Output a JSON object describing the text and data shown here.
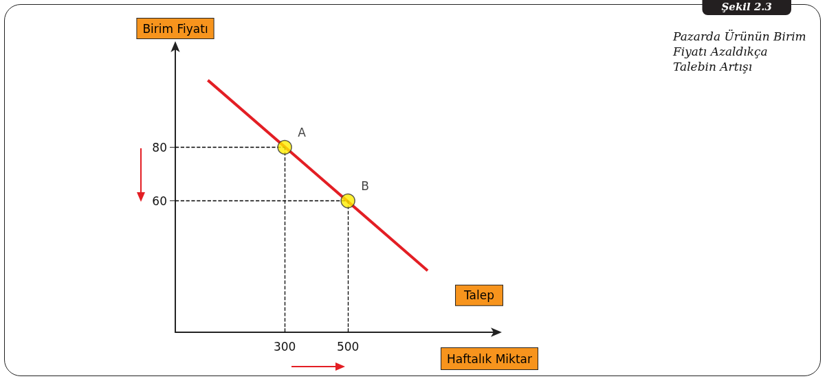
{
  "chart_data": {
    "type": "line",
    "title": "Şekil 2.3",
    "subtitle": "Pazarda Ürünün Birim Fiyatı Azaldıkça Talebin Artışı",
    "xlabel": "Haftalık Miktar",
    "ylabel": "Birim Fiyatı",
    "xlim": [
      -46,
      965
    ],
    "ylim": [
      11,
      117
    ],
    "xticks": [
      300,
      500
    ],
    "yticks": [
      80,
      60
    ],
    "series": [
      {
        "name": "Talep",
        "color": "#e31e24",
        "x": [
          57,
          752
        ],
        "values": [
          105,
          34
        ],
        "marker": "none"
      },
      {
        "type": "scatter",
        "color": "#ffee00",
        "x": [
          300,
          500
        ],
        "values": [
          80,
          60
        ],
        "marker": "circle"
      }
    ],
    "ref_lines": [
      {
        "axis": "x",
        "value": 300,
        "color": "#000000",
        "line_style": "dashed"
      },
      {
        "axis": "x",
        "value": 500,
        "color": "#000000",
        "line_style": "dashed"
      },
      {
        "axis": "y",
        "value": 80,
        "color": "#000000",
        "line_style": "dashed"
      },
      {
        "axis": "y",
        "value": 60,
        "color": "#000000",
        "line_style": "dashed"
      }
    ],
    "annotations": [
      {
        "text": "A",
        "x": 300,
        "y": 80
      },
      {
        "text": "B",
        "x": 500,
        "y": 60
      }
    ],
    "grid": false,
    "legend": false
  }
}
